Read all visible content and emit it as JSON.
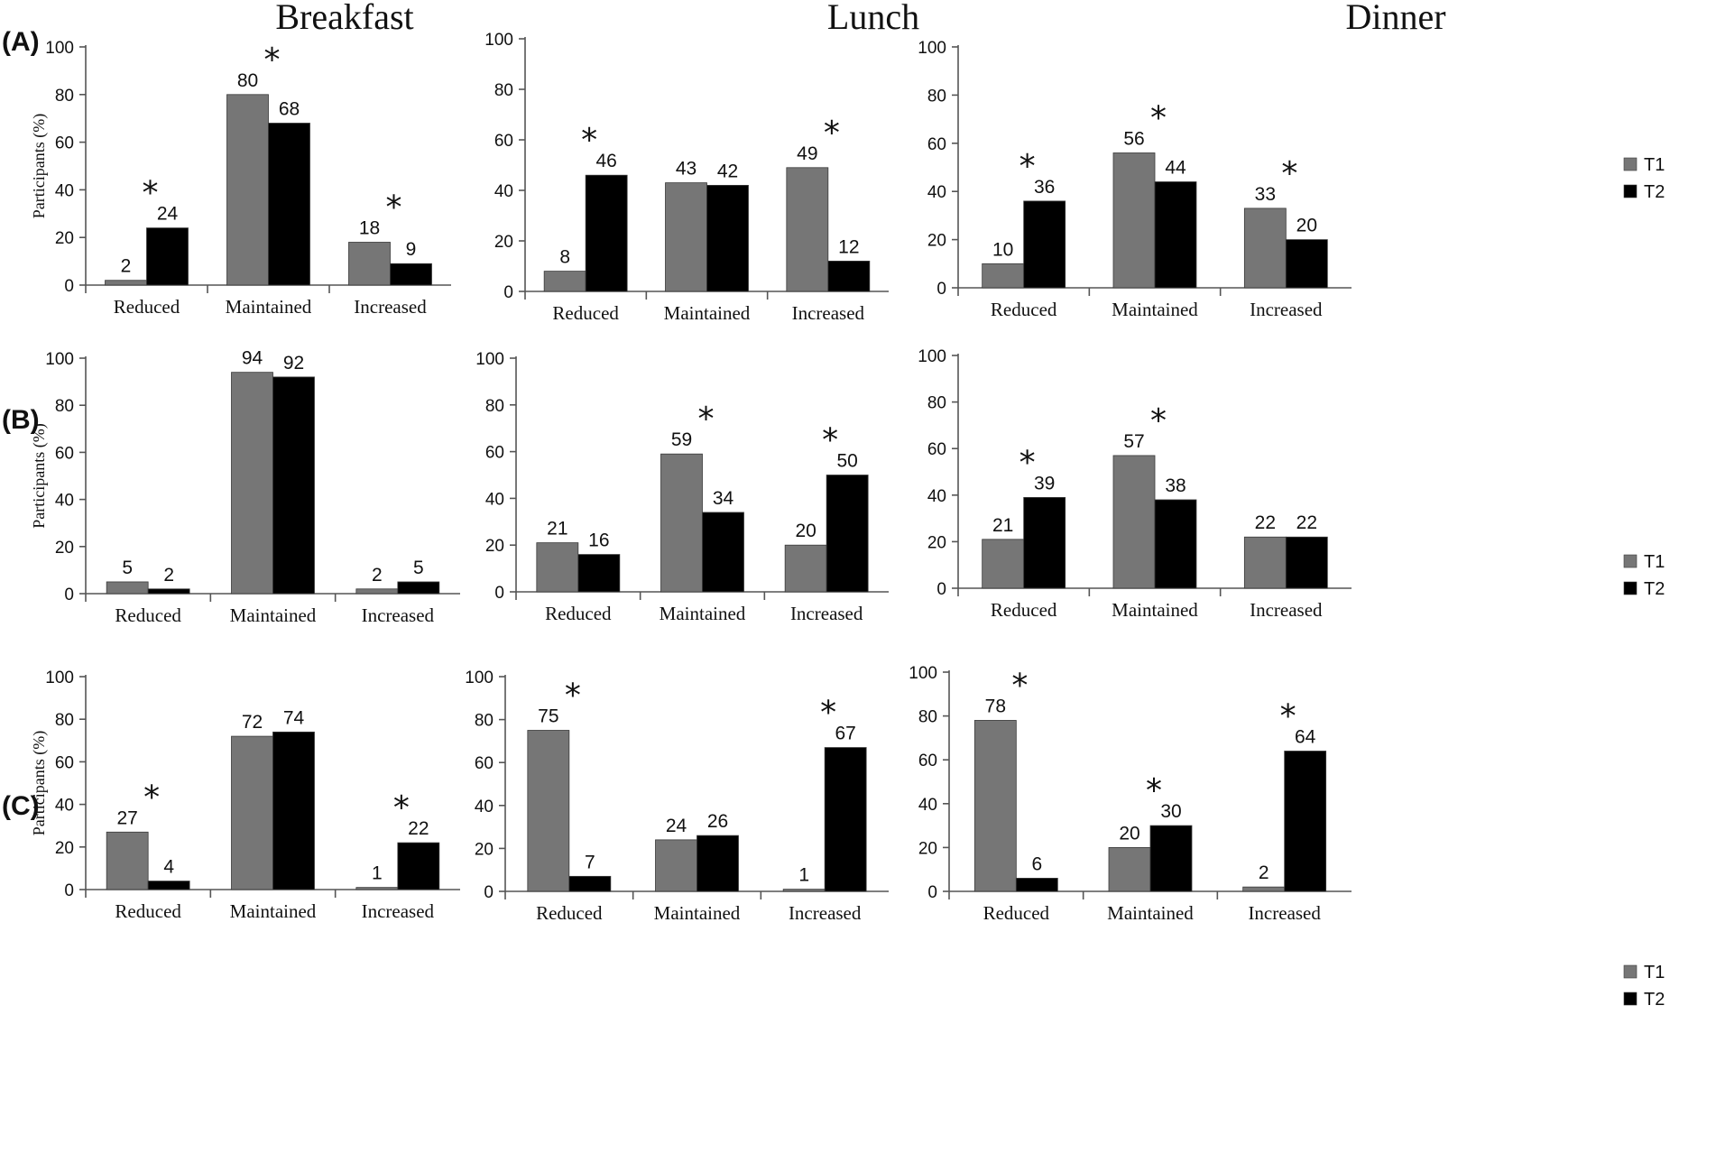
{
  "columns": [
    "Breakfast",
    "Lunch",
    "Dinner"
  ],
  "rows": [
    "(A)",
    "(B)",
    "(C)"
  ],
  "colors": {
    "T1": "#767676",
    "T2": "#000000"
  },
  "legend": [
    "T1",
    "T2"
  ],
  "chart_data": [
    {
      "type": "bar",
      "row": "(A)",
      "title": "Breakfast",
      "ylabel": "Participants (%)",
      "ylim": [
        0,
        100
      ],
      "yticks": [
        0,
        20,
        40,
        60,
        80,
        100
      ],
      "categories": [
        "Reduced",
        "Maintained",
        "Increased"
      ],
      "series": [
        {
          "name": "T1",
          "values": [
            2,
            80,
            18
          ]
        },
        {
          "name": "T2",
          "values": [
            24,
            68,
            9
          ]
        }
      ],
      "significant": [
        true,
        true,
        true
      ]
    },
    {
      "type": "bar",
      "row": "(A)",
      "title": "Lunch",
      "ylabel": "",
      "ylim": [
        0,
        100
      ],
      "yticks": [
        0,
        20,
        40,
        60,
        80,
        100
      ],
      "categories": [
        "Reduced",
        "Maintained",
        "Increased"
      ],
      "series": [
        {
          "name": "T1",
          "values": [
            8,
            43,
            49
          ]
        },
        {
          "name": "T2",
          "values": [
            46,
            42,
            12
          ]
        }
      ],
      "significant": [
        true,
        false,
        true
      ]
    },
    {
      "type": "bar",
      "row": "(A)",
      "title": "Dinner",
      "ylabel": "",
      "ylim": [
        0,
        100
      ],
      "yticks": [
        0,
        20,
        40,
        60,
        80,
        100
      ],
      "categories": [
        "Reduced",
        "Maintained",
        "Increased"
      ],
      "series": [
        {
          "name": "T1",
          "values": [
            10,
            56,
            33
          ]
        },
        {
          "name": "T2",
          "values": [
            36,
            44,
            20
          ]
        }
      ],
      "significant": [
        true,
        true,
        true
      ]
    },
    {
      "type": "bar",
      "row": "(B)",
      "title": "Breakfast",
      "ylabel": "Participants (%)",
      "ylim": [
        0,
        100
      ],
      "yticks": [
        0,
        20,
        40,
        60,
        80,
        100
      ],
      "categories": [
        "Reduced",
        "Maintained",
        "Increased"
      ],
      "series": [
        {
          "name": "T1",
          "values": [
            5,
            94,
            2
          ]
        },
        {
          "name": "T2",
          "values": [
            2,
            92,
            5
          ]
        }
      ],
      "significant": [
        false,
        false,
        false
      ]
    },
    {
      "type": "bar",
      "row": "(B)",
      "title": "Lunch",
      "ylabel": "",
      "ylim": [
        0,
        100
      ],
      "yticks": [
        0,
        20,
        40,
        60,
        80,
        100
      ],
      "categories": [
        "Reduced",
        "Maintained",
        "Increased"
      ],
      "series": [
        {
          "name": "T1",
          "values": [
            21,
            59,
            20
          ]
        },
        {
          "name": "T2",
          "values": [
            16,
            34,
            50
          ]
        }
      ],
      "significant": [
        false,
        true,
        true
      ]
    },
    {
      "type": "bar",
      "row": "(B)",
      "title": "Dinner",
      "ylabel": "",
      "ylim": [
        0,
        100
      ],
      "yticks": [
        0,
        20,
        40,
        60,
        80,
        100
      ],
      "categories": [
        "Reduced",
        "Maintained",
        "Increased"
      ],
      "series": [
        {
          "name": "T1",
          "values": [
            21,
            57,
            22
          ]
        },
        {
          "name": "T2",
          "values": [
            39,
            38,
            22
          ]
        }
      ],
      "significant": [
        true,
        true,
        false
      ]
    },
    {
      "type": "bar",
      "row": "(C)",
      "title": "Breakfast",
      "ylabel": "Participants (%)",
      "ylim": [
        0,
        100
      ],
      "yticks": [
        0,
        20,
        40,
        60,
        80,
        100
      ],
      "categories": [
        "Reduced",
        "Maintained",
        "Increased"
      ],
      "series": [
        {
          "name": "T1",
          "values": [
            27,
            72,
            1
          ]
        },
        {
          "name": "T2",
          "values": [
            4,
            74,
            22
          ]
        }
      ],
      "significant": [
        true,
        false,
        true
      ]
    },
    {
      "type": "bar",
      "row": "(C)",
      "title": "Lunch",
      "ylabel": "",
      "ylim": [
        0,
        100
      ],
      "yticks": [
        0,
        20,
        40,
        60,
        80,
        100
      ],
      "categories": [
        "Reduced",
        "Maintained",
        "Increased"
      ],
      "series": [
        {
          "name": "T1",
          "values": [
            75,
            24,
            1
          ]
        },
        {
          "name": "T2",
          "values": [
            7,
            26,
            67
          ]
        }
      ],
      "significant": [
        true,
        false,
        true
      ]
    },
    {
      "type": "bar",
      "row": "(C)",
      "title": "Dinner",
      "ylabel": "",
      "ylim": [
        0,
        100
      ],
      "yticks": [
        0,
        20,
        40,
        60,
        80,
        100
      ],
      "categories": [
        "Reduced",
        "Maintained",
        "Increased"
      ],
      "series": [
        {
          "name": "T1",
          "values": [
            78,
            20,
            2
          ]
        },
        {
          "name": "T2",
          "values": [
            6,
            30,
            64
          ]
        }
      ],
      "significant": [
        true,
        true,
        true
      ]
    }
  ]
}
